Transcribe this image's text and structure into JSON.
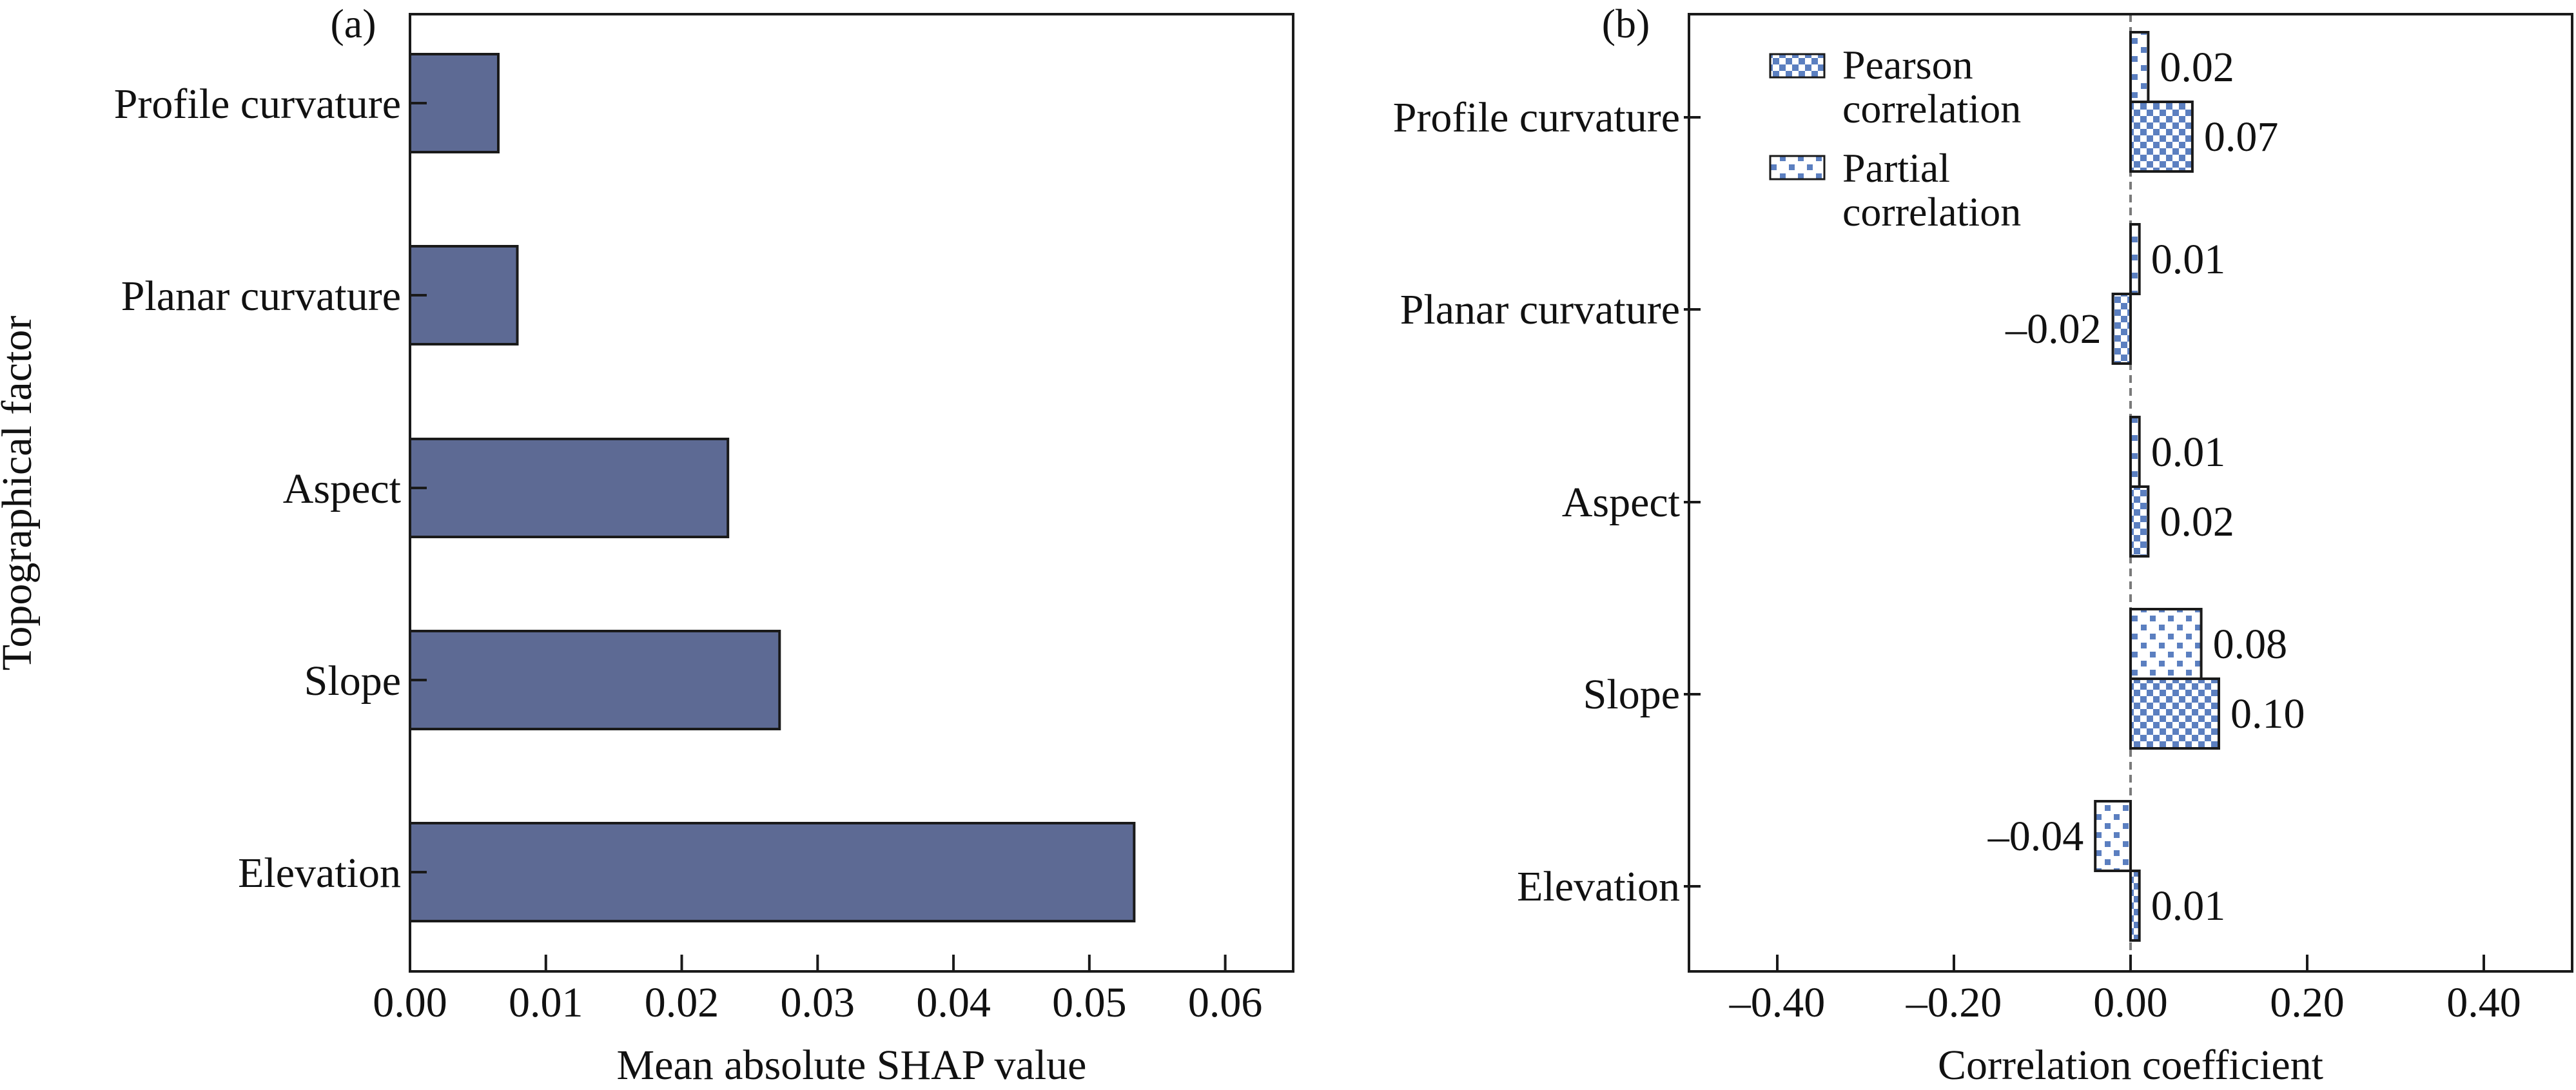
{
  "chart_data": [
    {
      "panel": "(a)",
      "type": "bar",
      "orientation": "horizontal",
      "categories": [
        "Profile curvature",
        "Planar curvature",
        "Aspect",
        "Slope",
        "Elevation"
      ],
      "values": [
        0.0065,
        0.0079,
        0.0234,
        0.0272,
        0.0533
      ],
      "xlabel": "Mean absolute SHAP value",
      "ylabel": "Topographical factor",
      "xlim": [
        0,
        0.065
      ],
      "xticks": [
        0,
        0.01,
        0.02,
        0.03,
        0.04,
        0.05,
        0.06
      ],
      "xtick_labels": [
        "0.00",
        "0.01",
        "0.02",
        "0.03",
        "0.04",
        "0.05",
        "0.06"
      ],
      "grid": false,
      "colors": {
        "bar": "#5d6a94",
        "edge": "#1a1a1a"
      }
    },
    {
      "panel": "(b)",
      "type": "bar",
      "orientation": "horizontal",
      "categories": [
        "Profile curvature",
        "Planar curvature",
        "Aspect",
        "Slope",
        "Elevation"
      ],
      "series": [
        {
          "name": "Partial correlation",
          "values": [
            0.02,
            0.01,
            0.01,
            0.08,
            -0.04
          ],
          "labels": [
            "0.02",
            "0.01",
            "0.01",
            "0.08",
            "–0.04"
          ],
          "pattern": "sparse-dots"
        },
        {
          "name": "Pearson correlation",
          "values": [
            0.07,
            -0.02,
            0.02,
            0.1,
            0.01
          ],
          "labels": [
            "0.07",
            "–0.02",
            "0.02",
            "0.10",
            "0.01"
          ],
          "pattern": "checker"
        }
      ],
      "legend": [
        {
          "series": "Pearson correlation",
          "lines": [
            "Pearson",
            "correlation"
          ]
        },
        {
          "series": "Partial correlation",
          "lines": [
            "Partial",
            "correlation"
          ]
        }
      ],
      "legend_position": "top-left",
      "xlabel": "Correlation coefficient",
      "xlim": [
        -0.5,
        0.5
      ],
      "xticks": [
        -0.4,
        -0.2,
        0,
        0.2,
        0.4
      ],
      "xtick_labels": [
        "–0.40",
        "–0.20",
        "0.00",
        "0.20",
        "0.40"
      ],
      "zero_line": "dashed",
      "grid": false,
      "colors": {
        "pattern": "#5b7fc0",
        "edge": "#1a1a1a",
        "zero_line": "#7a7a7a"
      }
    }
  ]
}
